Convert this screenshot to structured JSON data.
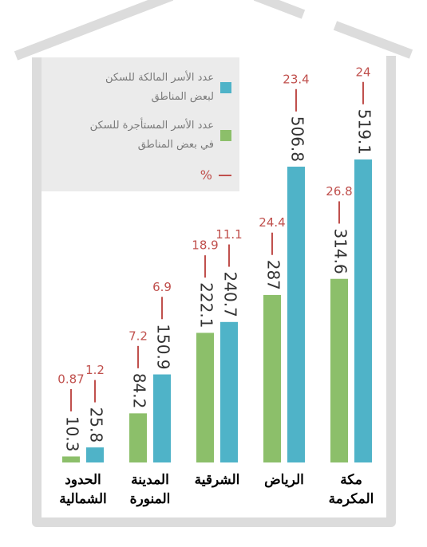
{
  "chart_data": {
    "type": "bar",
    "categories": [
      "الحدود الشمالية",
      "المدينة المنورة",
      "الشرقية",
      "الرياض",
      "مكة المكرمة"
    ],
    "series": [
      {
        "name": "عدد الأسر المالكة للسكن لبعض المناطق",
        "color": "#4fb3c8",
        "values": [
          25.8,
          150.9,
          240.7,
          506.8,
          519.1
        ],
        "percentages": [
          1.2,
          6.9,
          11.1,
          23.4,
          24
        ]
      },
      {
        "name": "عدد الأسر المستأجرة للسكن في بعض المناطق",
        "color": "#8cbf6a",
        "values": [
          10.3,
          84.2,
          222.1,
          287,
          314.6
        ],
        "percentages": [
          0.87,
          7.2,
          18.9,
          24.4,
          26.8
        ]
      }
    ],
    "percent_label": "%",
    "percent_color": "#c0504d"
  }
}
